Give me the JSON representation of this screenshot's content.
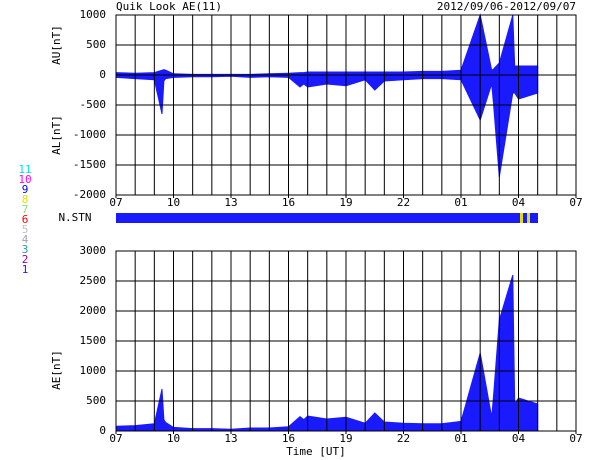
{
  "title": "Quik Look AE(11)",
  "date_range": "2012/09/06-2012/09/07",
  "nstn_label": "N.STN",
  "stations": [
    {
      "label": "11",
      "color": "#00e0e0"
    },
    {
      "label": "10",
      "color": "#ff00ff"
    },
    {
      "label": "9",
      "color": "#0000ff"
    },
    {
      "label": "8",
      "color": "#e0e000"
    },
    {
      "label": "7",
      "color": "#80e080"
    },
    {
      "label": "6",
      "color": "#ff0000"
    },
    {
      "label": "5",
      "color": "#c0c0c0"
    },
    {
      "label": "4",
      "color": "#a0a0c0"
    },
    {
      "label": "3",
      "color": "#20a0a0"
    },
    {
      "label": "2",
      "color": "#a000a0"
    },
    {
      "label": "1",
      "color": "#2020ff"
    }
  ],
  "chart_data": [
    {
      "type": "area",
      "ylabels": [
        "AU[nT]",
        "AL[nT]"
      ],
      "x": [
        0,
        1,
        2,
        2.4,
        2.5,
        2.6,
        3,
        4,
        5,
        6,
        7,
        8,
        9,
        9.6,
        9.8,
        10,
        11,
        12,
        13,
        13.5,
        14,
        15,
        16,
        17,
        18,
        19,
        19.6,
        19.7,
        20,
        20.7,
        20.8,
        21,
        21.5,
        22
      ],
      "series": [
        {
          "name": "AU",
          "color": "#1a1aff",
          "values": [
            40,
            30,
            40,
            80,
            90,
            80,
            20,
            10,
            10,
            10,
            10,
            20,
            30,
            40,
            40,
            50,
            50,
            50,
            50,
            50,
            50,
            50,
            60,
            60,
            80,
            1000,
            80,
            100,
            200,
            1000,
            150,
            150,
            150,
            150
          ]
        },
        {
          "name": "AL",
          "color": "#1a1aff",
          "values": [
            -40,
            -60,
            -80,
            -650,
            -100,
            -60,
            -40,
            -30,
            -30,
            -20,
            -40,
            -30,
            -40,
            -200,
            -150,
            -200,
            -150,
            -180,
            -80,
            -250,
            -100,
            -80,
            -60,
            -60,
            -80,
            -750,
            -150,
            -500,
            -1700,
            -300,
            -300,
            -400,
            -350,
            -300
          ]
        }
      ],
      "xlim": [
        0,
        24
      ],
      "xticks": [
        {
          "value": 0,
          "label": "07"
        },
        {
          "value": 3,
          "label": "10"
        },
        {
          "value": 6,
          "label": "13"
        },
        {
          "value": 9,
          "label": "16"
        },
        {
          "value": 12,
          "label": "19"
        },
        {
          "value": 15,
          "label": "22"
        },
        {
          "value": 18,
          "label": "01"
        },
        {
          "value": 21,
          "label": "04"
        },
        {
          "value": 24,
          "label": "07"
        }
      ],
      "ylim": [
        -2000,
        1000
      ],
      "yticks": [
        -2000,
        -1500,
        -1000,
        -500,
        0,
        500,
        1000
      ]
    },
    {
      "type": "area",
      "ylabels": [
        "AE[nT]"
      ],
      "xlabel": "Time [UT]",
      "x": [
        0,
        1,
        2,
        2.4,
        2.5,
        2.6,
        3,
        4,
        5,
        6,
        7,
        8,
        9,
        9.6,
        9.8,
        10,
        11,
        12,
        13,
        13.5,
        14,
        15,
        16,
        17,
        18,
        19,
        19.6,
        19.7,
        20,
        20.7,
        20.8,
        21,
        21.5,
        22
      ],
      "series": [
        {
          "name": "AE",
          "color": "#1a1aff",
          "values": [
            80,
            90,
            120,
            700,
            190,
            140,
            60,
            40,
            40,
            30,
            50,
            50,
            70,
            240,
            190,
            250,
            200,
            230,
            130,
            300,
            150,
            130,
            120,
            120,
            160,
            1300,
            230,
            600,
            1850,
            2600,
            450,
            550,
            500,
            450
          ]
        }
      ],
      "xlim": [
        0,
        24
      ],
      "xticks": [
        {
          "value": 0,
          "label": "07"
        },
        {
          "value": 3,
          "label": "10"
        },
        {
          "value": 6,
          "label": "13"
        },
        {
          "value": 9,
          "label": "16"
        },
        {
          "value": 12,
          "label": "19"
        },
        {
          "value": 15,
          "label": "22"
        },
        {
          "value": 18,
          "label": "01"
        },
        {
          "value": 21,
          "label": "04"
        },
        {
          "value": 24,
          "label": "07"
        }
      ],
      "ylim": [
        0,
        3000
      ],
      "yticks": [
        0,
        500,
        1000,
        1500,
        2000,
        2500,
        3000
      ]
    }
  ]
}
